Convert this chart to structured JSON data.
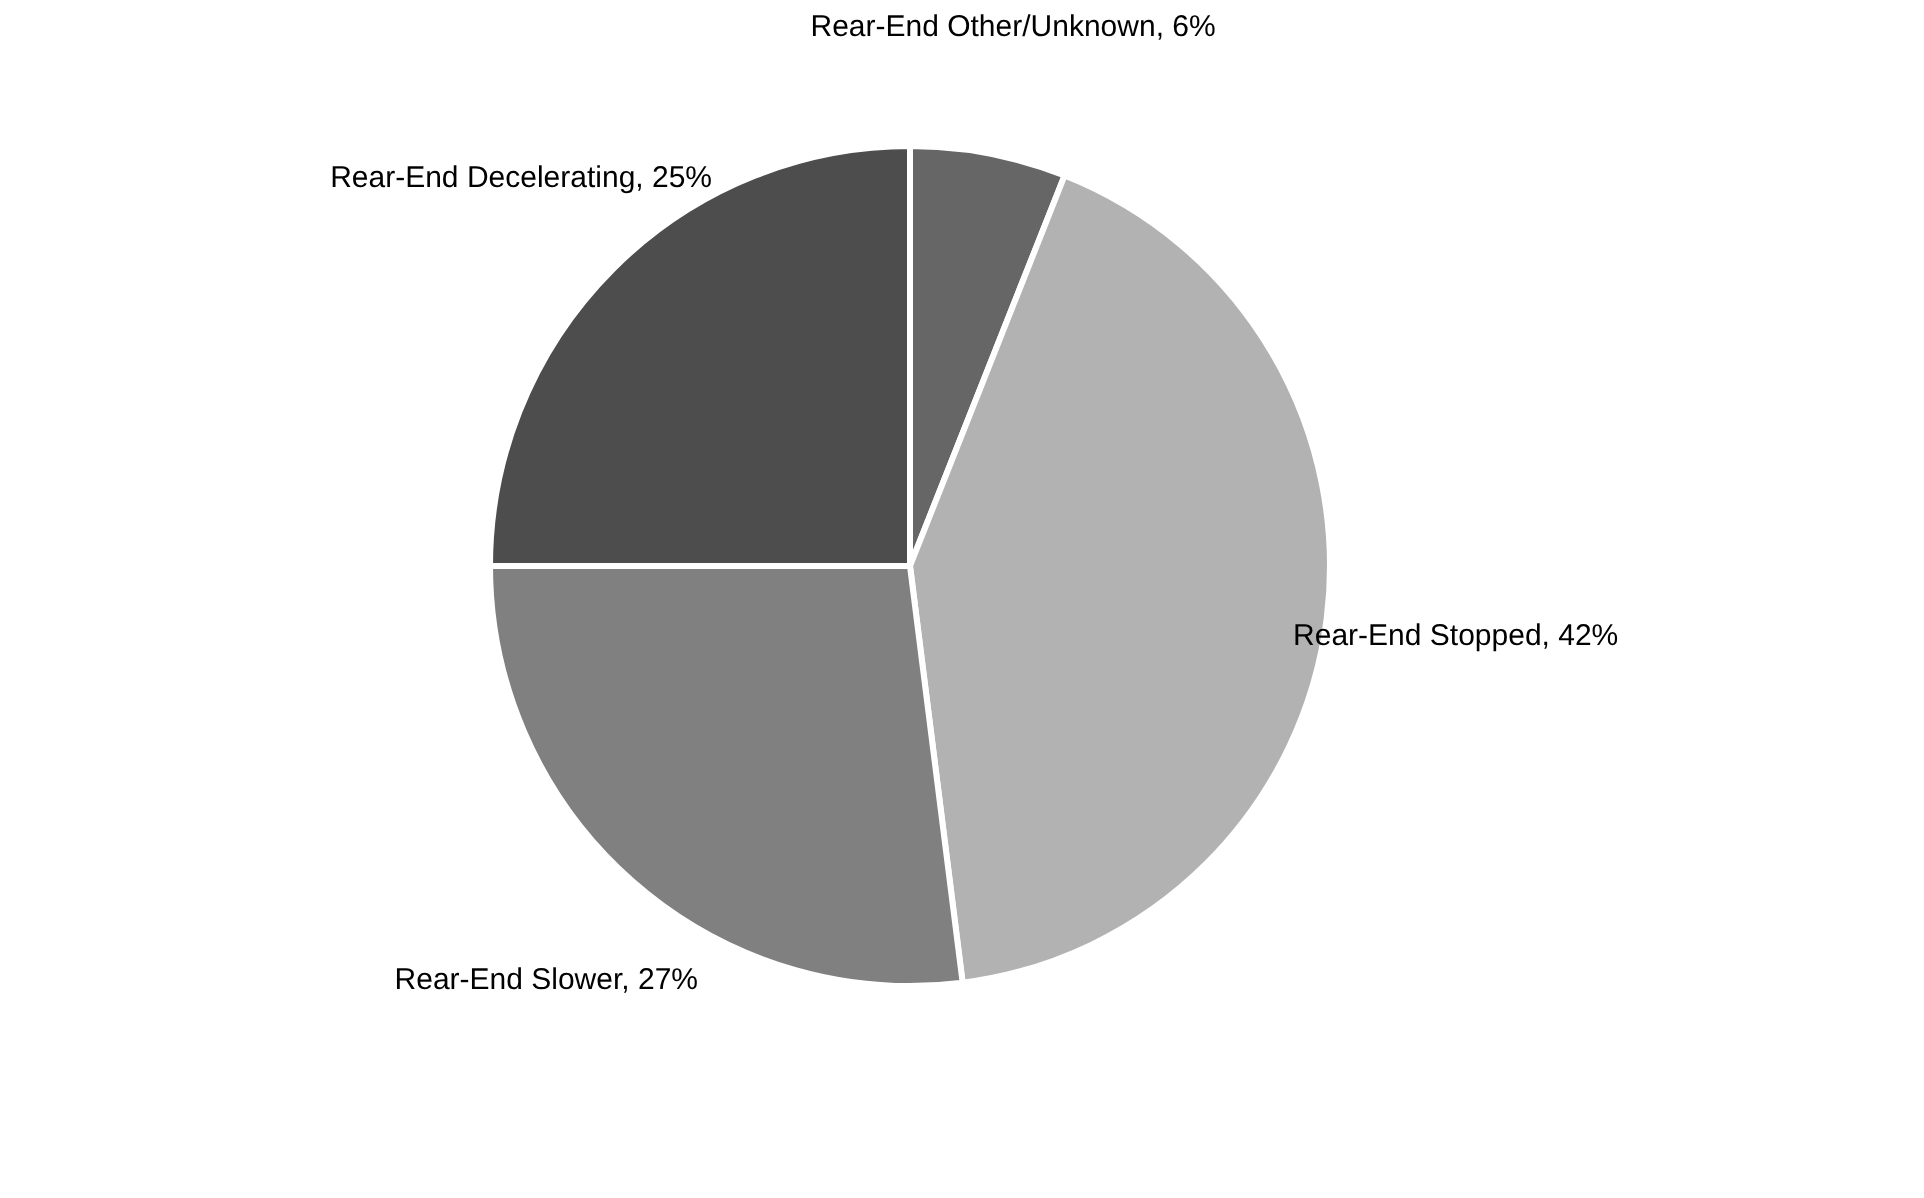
{
  "chart_data": {
    "type": "pie",
    "categories": [
      "Rear-End Other/Unknown",
      "Rear-End Stopped",
      "Rear-End Slower",
      "Rear-End Decelerating"
    ],
    "values": [
      6,
      42,
      27,
      25
    ],
    "value_labels": [
      "6%",
      "42%",
      "27%",
      "25%"
    ],
    "colors": [
      "#666666",
      "#b2b2b2",
      "#808080",
      "#4d4d4d"
    ],
    "legend": false
  }
}
